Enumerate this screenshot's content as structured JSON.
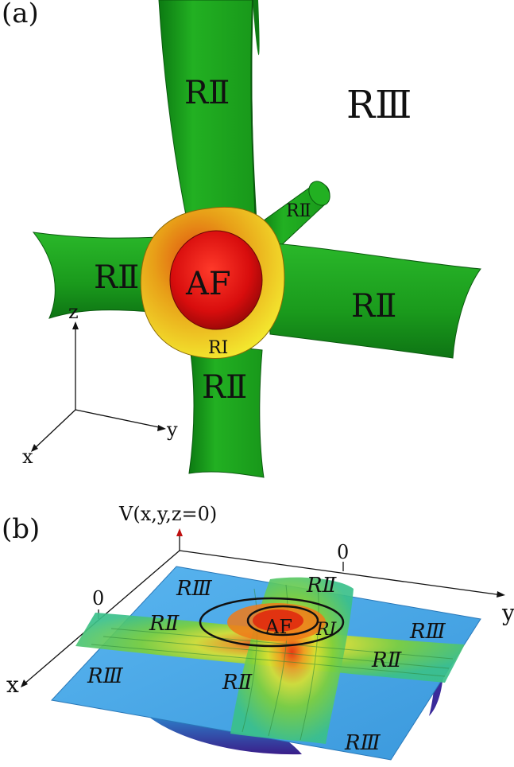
{
  "panel_a": {
    "label": "(a)",
    "regions": {
      "r2_top": "RⅡ",
      "r3": "RⅢ",
      "r2_tube": "RⅡ",
      "r2_left": "RⅡ",
      "af": "AF",
      "r2_right": "RⅡ",
      "r1": "RⅠ",
      "r2_bottom": "RⅡ"
    },
    "axes": {
      "z": "z",
      "y": "y",
      "x": "x"
    },
    "colors": {
      "tube": "#1fa01f",
      "tube_dark": "#0f7a14",
      "af": "#e01010",
      "shell_yellow": "#f2e420",
      "shell_orange": "#e07a10"
    }
  },
  "panel_b": {
    "label": "(b)",
    "axis_title": "V(x,y,z=0)",
    "zero_left": "0",
    "zero_right": "0",
    "axis_y": "y",
    "axis_x": "x",
    "regions": {
      "r3_top": "RⅢ",
      "r2_top": "RⅡ",
      "r2_left": "RⅡ",
      "af": "AF",
      "r1": "RI",
      "r3_right": "RⅢ",
      "r2_right": "RⅡ",
      "r3_left": "RⅢ",
      "r2_center": "RⅡ",
      "r3_bottom": "RⅢ"
    },
    "colors": {
      "plateau": "#4aa8e8",
      "ridge": "#7ecf3a",
      "peak": "#e02a10",
      "trough": "#3a2a9a"
    }
  }
}
